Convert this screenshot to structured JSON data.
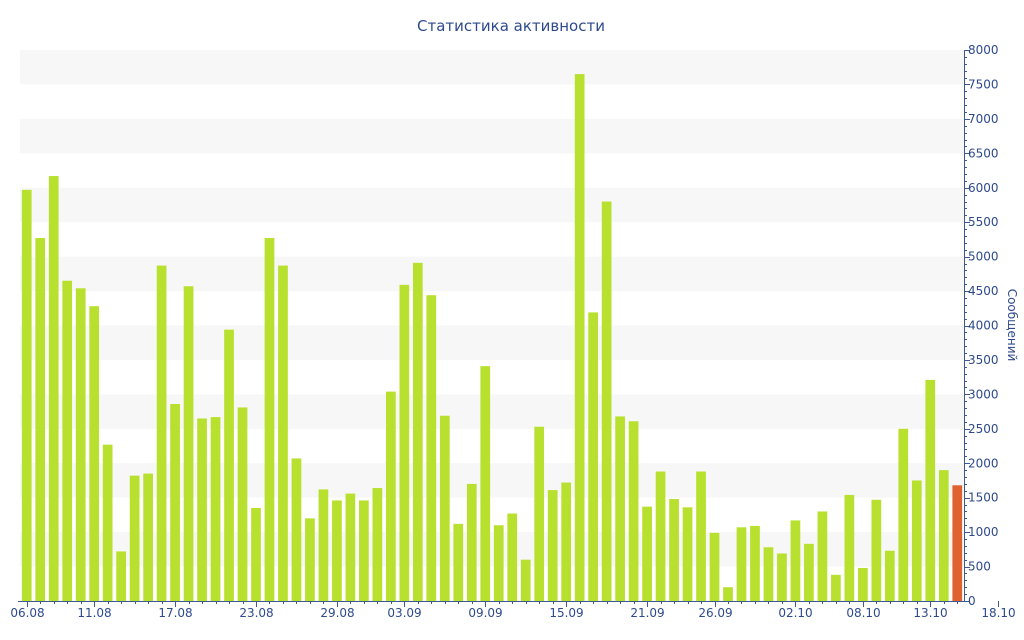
{
  "chart_data": {
    "type": "bar",
    "title": "Статистика активности",
    "ylabel": "Сообщений",
    "xlabel": "",
    "ylim": [
      0,
      8000
    ],
    "y_ticks": [
      0,
      500,
      1000,
      1500,
      2000,
      2500,
      3000,
      3500,
      4000,
      4500,
      5000,
      5500,
      6000,
      6500,
      7000,
      7500,
      8000
    ],
    "y_axis_position": "right",
    "grid": "alternating horizontal bands",
    "x_tick_labels": [
      {
        "index": 0,
        "label": "06.08"
      },
      {
        "index": 5,
        "label": "11.08"
      },
      {
        "index": 11,
        "label": "17.08"
      },
      {
        "index": 17,
        "label": "23.08"
      },
      {
        "index": 23,
        "label": "29.08"
      },
      {
        "index": 28,
        "label": "03.09"
      },
      {
        "index": 34,
        "label": "09.09"
      },
      {
        "index": 40,
        "label": "15.09"
      },
      {
        "index": 46,
        "label": "21.09"
      },
      {
        "index": 51,
        "label": "26.09"
      },
      {
        "index": 57,
        "label": "02.10"
      },
      {
        "index": 62,
        "label": "08.10"
      },
      {
        "index": 67,
        "label": "13.10"
      },
      {
        "index": 72,
        "label": "18.10"
      }
    ],
    "values": [
      5970,
      5270,
      6170,
      4650,
      4540,
      4280,
      2270,
      720,
      1820,
      1850,
      4870,
      2860,
      4570,
      2650,
      2670,
      3940,
      2810,
      1350,
      5270,
      4870,
      2070,
      1200,
      1620,
      1460,
      1560,
      1460,
      1640,
      3040,
      4590,
      4910,
      4440,
      2690,
      1120,
      1700,
      3410,
      1100,
      1270,
      600,
      2530,
      1610,
      1720,
      7650,
      4190,
      5800,
      2680,
      2610,
      1370,
      1880,
      1480,
      1360,
      1880,
      990,
      200,
      1070,
      1090,
      780,
      690,
      1170,
      830,
      1300,
      380,
      1540,
      480,
      1470,
      730,
      2500,
      1750,
      3210,
      1900,
      1680
    ],
    "highlight_index": 69,
    "colors": {
      "bar": "#b8e02e",
      "highlight_bar": "#e0622e",
      "text": "#2e4a8c",
      "axis": "#3e5891",
      "band": "#f7f7f7"
    }
  }
}
